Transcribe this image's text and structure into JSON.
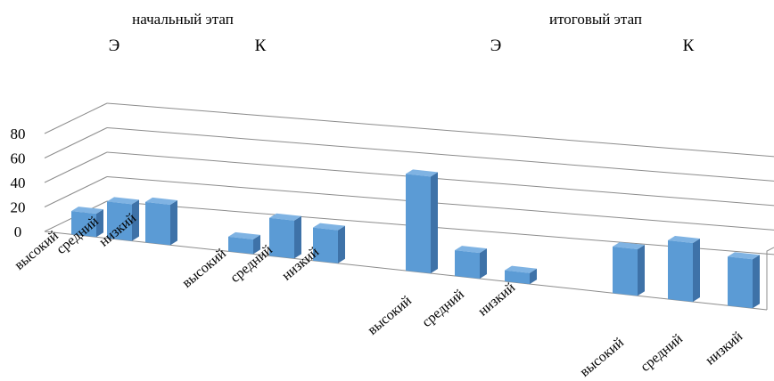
{
  "chart_data": {
    "type": "bar",
    "style": "3d-column",
    "stages": [
      {
        "label": "начальный этап",
        "groups": [
          {
            "label": "Э",
            "categories": [
              "высокий",
              "средний",
              "низкий"
            ],
            "values": [
              19,
              30,
              33
            ]
          },
          {
            "label": "К",
            "categories": [
              "высокий",
              "средний",
              "низкий"
            ],
            "values": [
              12,
              31,
              27
            ]
          }
        ]
      },
      {
        "label": "итоговый этап",
        "groups": [
          {
            "label": "Э",
            "categories": [
              "высокий",
              "средний",
              "низкий"
            ],
            "values": [
              79,
              21,
              9
            ]
          },
          {
            "label": "К",
            "categories": [
              "высокий",
              "средний",
              "низкий"
            ],
            "values": [
              38,
              48,
              40
            ]
          }
        ]
      }
    ],
    "y_ticks": [
      "0",
      "20",
      "40",
      "60",
      "80"
    ],
    "ylim": [
      0,
      80
    ],
    "grid": true,
    "colors": {
      "bar_front": "#5b9bd5",
      "bar_side": "#3e72a8",
      "bar_top": "#7fb3e3",
      "grid": "#8c8c8c"
    }
  }
}
